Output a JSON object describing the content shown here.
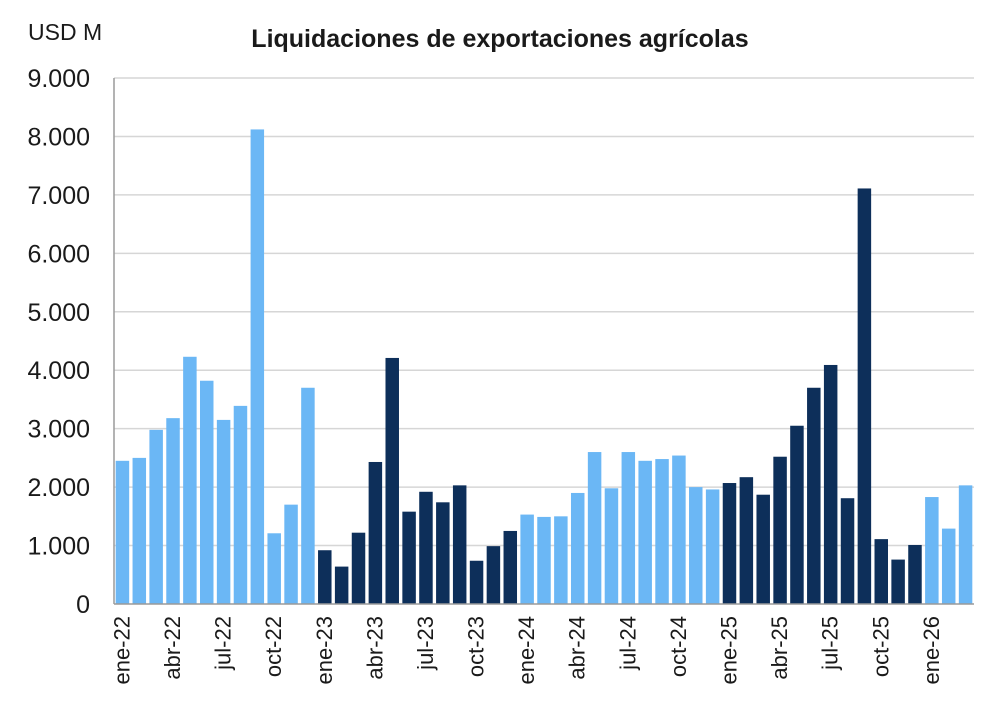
{
  "chart_data": {
    "type": "bar",
    "title": "Liquidaciones de exportaciones agrícolas",
    "ylabel": "USD M",
    "ylim": [
      0,
      9000
    ],
    "yticks": [
      0,
      1000,
      2000,
      3000,
      4000,
      5000,
      6000,
      7000,
      8000,
      9000
    ],
    "ytick_labels": [
      "0",
      "1.000",
      "2.000",
      "3.000",
      "4.000",
      "5.000",
      "6.000",
      "7.000",
      "8.000",
      "9.000"
    ],
    "grid": true,
    "colors": {
      "light": "#6bb7f5",
      "dark": "#0d2f5a",
      "grid": "#d6d6d6",
      "axis": "#9a9a9a"
    },
    "categories": [
      "ene-22",
      "feb-22",
      "mar-22",
      "abr-22",
      "may-22",
      "jun-22",
      "jul-22",
      "ago-22",
      "sep-22",
      "oct-22",
      "nov-22",
      "dic-22",
      "ene-23",
      "feb-23",
      "mar-23",
      "abr-23",
      "may-23",
      "jun-23",
      "jul-23",
      "ago-23",
      "sep-23",
      "oct-23",
      "nov-23",
      "dic-23",
      "ene-24",
      "feb-24",
      "mar-24",
      "abr-24",
      "may-24",
      "jun-24",
      "jul-24",
      "ago-24",
      "sep-24",
      "oct-24",
      "nov-24",
      "dic-24",
      "ene-25",
      "feb-25",
      "mar-25",
      "abr-25",
      "may-25",
      "jun-25",
      "jul-25",
      "ago-25",
      "sep-25",
      "oct-25",
      "nov-25",
      "dic-25",
      "ene-26",
      "feb-26",
      "mar-26"
    ],
    "values": [
      2450,
      2500,
      2980,
      3180,
      4230,
      3820,
      3150,
      3390,
      8120,
      1210,
      1700,
      3700,
      920,
      640,
      1220,
      2430,
      4210,
      1580,
      1920,
      1740,
      2030,
      740,
      990,
      1250,
      1530,
      1490,
      1500,
      1900,
      2600,
      1980,
      2600,
      2450,
      2480,
      2540,
      2000,
      1960,
      2070,
      2170,
      1870,
      2520,
      3050,
      3700,
      4090,
      1810,
      7110,
      1110,
      760,
      1010,
      1830,
      1290,
      2030
    ],
    "shades": [
      "light",
      "light",
      "light",
      "light",
      "light",
      "light",
      "light",
      "light",
      "light",
      "light",
      "light",
      "light",
      "dark",
      "dark",
      "dark",
      "dark",
      "dark",
      "dark",
      "dark",
      "dark",
      "dark",
      "dark",
      "dark",
      "dark",
      "light",
      "light",
      "light",
      "light",
      "light",
      "light",
      "light",
      "light",
      "light",
      "light",
      "light",
      "light",
      "dark",
      "dark",
      "dark",
      "dark",
      "dark",
      "dark",
      "dark",
      "dark",
      "dark",
      "dark",
      "dark",
      "dark",
      "light",
      "light",
      "light"
    ],
    "xtick_labels": [
      {
        "index": 0,
        "label": "ene-22"
      },
      {
        "index": 3,
        "label": "abr-22"
      },
      {
        "index": 6,
        "label": "jul-22"
      },
      {
        "index": 9,
        "label": "oct-22"
      },
      {
        "index": 12,
        "label": "ene-23"
      },
      {
        "index": 15,
        "label": "abr-23"
      },
      {
        "index": 18,
        "label": "jul-23"
      },
      {
        "index": 21,
        "label": "oct-23"
      },
      {
        "index": 24,
        "label": "ene-24"
      },
      {
        "index": 27,
        "label": "abr-24"
      },
      {
        "index": 30,
        "label": "jul-24"
      },
      {
        "index": 33,
        "label": "oct-24"
      },
      {
        "index": 36,
        "label": "ene-25"
      },
      {
        "index": 39,
        "label": "abr-25"
      },
      {
        "index": 42,
        "label": "jul-25"
      },
      {
        "index": 45,
        "label": "oct-25"
      },
      {
        "index": 48,
        "label": "ene-26"
      }
    ]
  }
}
